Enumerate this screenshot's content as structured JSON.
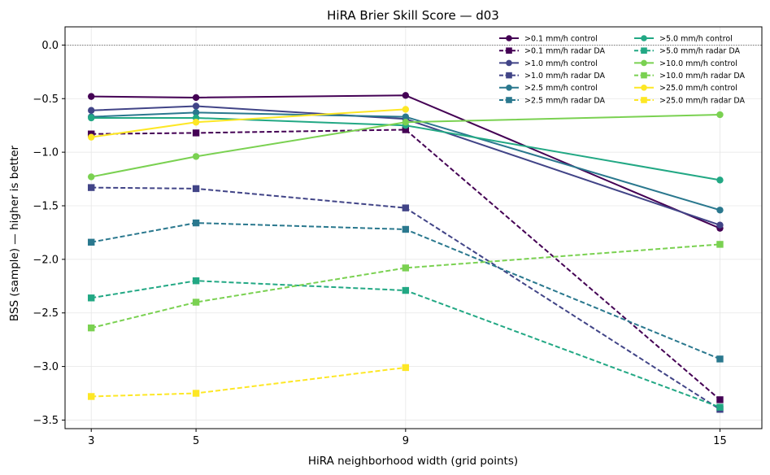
{
  "chart_data": {
    "type": "line",
    "title": "HiRA Brier Skill Score — d03",
    "xlabel": "HiRA neighborhood width (grid points)",
    "ylabel": "BSS (sample) — higher is better",
    "x": [
      3,
      5,
      9,
      15
    ],
    "xticks": [
      "3",
      "5",
      "9",
      "15"
    ],
    "yticks": [
      "0.0",
      "−0.5",
      "−1.0",
      "−1.5",
      "−2.0",
      "−2.5",
      "−3.0",
      "−3.5"
    ],
    "ytick_values": [
      0.0,
      -0.5,
      -1.0,
      -1.5,
      -2.0,
      -2.5,
      -3.0,
      -3.5
    ],
    "xlim": [
      2.5,
      15.8
    ],
    "ylim": [
      -3.58,
      0.17
    ],
    "grid": true,
    "reference_line_y": 0.0,
    "legend_position": "top-right",
    "series": [
      {
        "name": ">0.1 mm/h control",
        "color": "#440154",
        "dash": false,
        "marker": "circle",
        "values": [
          -0.48,
          -0.49,
          -0.47,
          -1.71
        ]
      },
      {
        "name": ">0.1 mm/h radar DA",
        "color": "#440154",
        "dash": true,
        "marker": "square",
        "values": [
          -0.83,
          -0.82,
          -0.79,
          -3.31
        ]
      },
      {
        "name": ">1.0 mm/h control",
        "color": "#414487",
        "dash": false,
        "marker": "circle",
        "values": [
          -0.61,
          -0.57,
          -0.69,
          -1.68
        ]
      },
      {
        "name": ">1.0 mm/h radar DA",
        "color": "#414487",
        "dash": true,
        "marker": "square",
        "values": [
          -1.33,
          -1.34,
          -1.52,
          -3.4
        ]
      },
      {
        "name": ">2.5 mm/h control",
        "color": "#2a788e",
        "dash": false,
        "marker": "circle",
        "values": [
          -0.67,
          -0.63,
          -0.67,
          -1.54
        ]
      },
      {
        "name": ">2.5 mm/h radar DA",
        "color": "#2a788e",
        "dash": true,
        "marker": "square",
        "values": [
          -1.84,
          -1.66,
          -1.72,
          -2.93
        ]
      },
      {
        "name": ">5.0 mm/h control",
        "color": "#22a884",
        "dash": false,
        "marker": "circle",
        "values": [
          -0.68,
          -0.68,
          -0.75,
          -1.26
        ]
      },
      {
        "name": ">5.0 mm/h radar DA",
        "color": "#22a884",
        "dash": true,
        "marker": "square",
        "values": [
          -2.36,
          -2.2,
          -2.29,
          -3.38
        ]
      },
      {
        "name": ">10.0 mm/h control",
        "color": "#7ad151",
        "dash": false,
        "marker": "circle",
        "values": [
          -1.23,
          -1.04,
          -0.72,
          -0.65
        ]
      },
      {
        "name": ">10.0 mm/h radar DA",
        "color": "#7ad151",
        "dash": true,
        "marker": "square",
        "values": [
          -2.64,
          -2.4,
          -2.08,
          -1.86
        ]
      },
      {
        "name": ">25.0 mm/h control",
        "color": "#fde725",
        "dash": false,
        "marker": "circle",
        "values": [
          -0.86,
          -0.72,
          -0.6,
          null
        ]
      },
      {
        "name": ">25.0 mm/h radar DA",
        "color": "#fde725",
        "dash": true,
        "marker": "square",
        "values": [
          -3.28,
          -3.25,
          -3.01,
          null
        ]
      }
    ]
  }
}
